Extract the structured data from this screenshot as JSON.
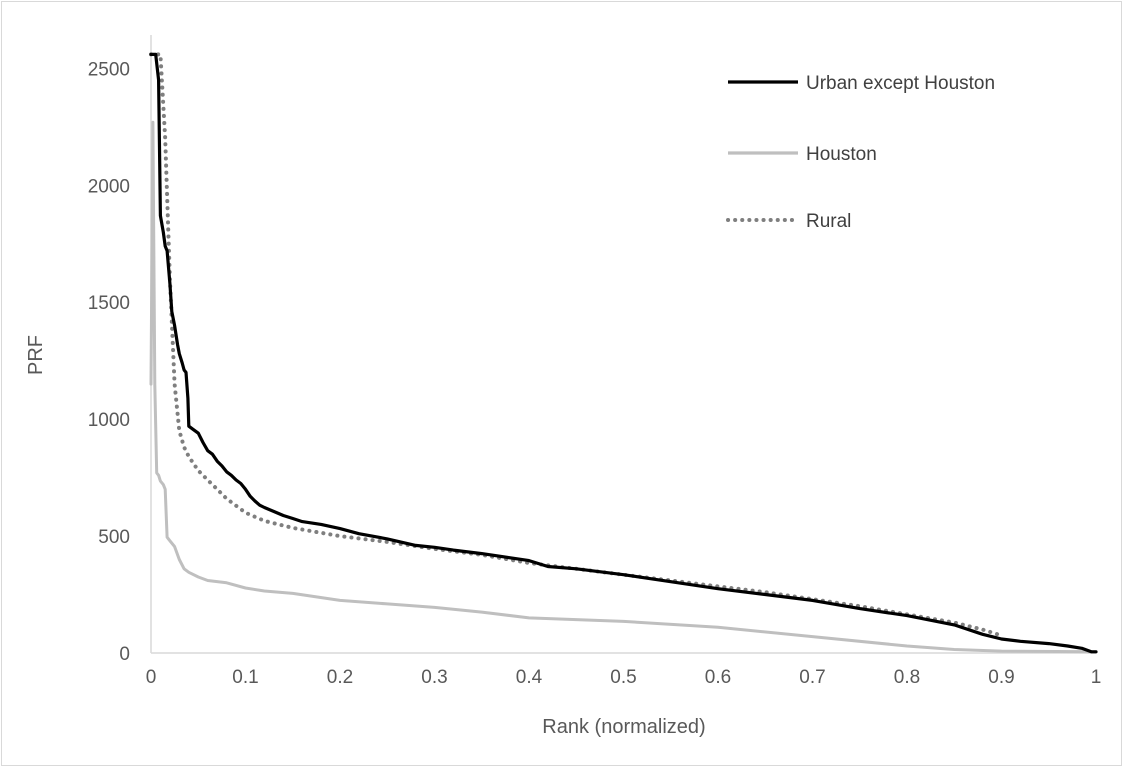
{
  "chart_data": {
    "type": "line",
    "title": "",
    "xlabel": "Rank (normalized)",
    "ylabel": "PRF",
    "xlim": [
      0,
      1
    ],
    "ylim": [
      0,
      2600
    ],
    "x_ticks": [
      "0",
      "0.1",
      "0.2",
      "0.3",
      "0.4",
      "0.5",
      "0.6",
      "0.7",
      "0.8",
      "0.9",
      "1"
    ],
    "y_ticks": [
      "0",
      "500",
      "1000",
      "1500",
      "2000",
      "2500"
    ],
    "grid": false,
    "legend_position": "top-right",
    "series": [
      {
        "name": "Urban except Houston",
        "color": "#000000",
        "style": "solid",
        "points": [
          [
            0.0,
            2560
          ],
          [
            0.005,
            2560
          ],
          [
            0.008,
            2450
          ],
          [
            0.01,
            1870
          ],
          [
            0.013,
            1800
          ],
          [
            0.015,
            1740
          ],
          [
            0.017,
            1720
          ],
          [
            0.02,
            1580
          ],
          [
            0.022,
            1460
          ],
          [
            0.025,
            1400
          ],
          [
            0.028,
            1320
          ],
          [
            0.03,
            1280
          ],
          [
            0.033,
            1240
          ],
          [
            0.035,
            1210
          ],
          [
            0.037,
            1200
          ],
          [
            0.039,
            1090
          ],
          [
            0.04,
            970
          ],
          [
            0.045,
            955
          ],
          [
            0.05,
            940
          ],
          [
            0.055,
            900
          ],
          [
            0.06,
            865
          ],
          [
            0.065,
            850
          ],
          [
            0.07,
            820
          ],
          [
            0.075,
            800
          ],
          [
            0.08,
            775
          ],
          [
            0.085,
            760
          ],
          [
            0.09,
            740
          ],
          [
            0.095,
            725
          ],
          [
            0.1,
            700
          ],
          [
            0.105,
            670
          ],
          [
            0.11,
            650
          ],
          [
            0.115,
            632
          ],
          [
            0.12,
            622
          ],
          [
            0.13,
            605
          ],
          [
            0.14,
            588
          ],
          [
            0.15,
            575
          ],
          [
            0.16,
            562
          ],
          [
            0.18,
            550
          ],
          [
            0.2,
            532
          ],
          [
            0.22,
            510
          ],
          [
            0.25,
            488
          ],
          [
            0.28,
            460
          ],
          [
            0.3,
            452
          ],
          [
            0.32,
            440
          ],
          [
            0.35,
            425
          ],
          [
            0.4,
            395
          ],
          [
            0.42,
            370
          ],
          [
            0.45,
            360
          ],
          [
            0.5,
            335
          ],
          [
            0.55,
            305
          ],
          [
            0.6,
            275
          ],
          [
            0.65,
            250
          ],
          [
            0.7,
            225
          ],
          [
            0.75,
            190
          ],
          [
            0.8,
            160
          ],
          [
            0.85,
            120
          ],
          [
            0.88,
            80
          ],
          [
            0.9,
            60
          ],
          [
            0.92,
            50
          ],
          [
            0.95,
            40
          ],
          [
            0.97,
            30
          ],
          [
            0.985,
            20
          ],
          [
            0.995,
            5
          ],
          [
            1.0,
            5
          ]
        ]
      },
      {
        "name": "Houston",
        "color": "#bfbfbf",
        "style": "solid",
        "points": [
          [
            0.0,
            1150
          ],
          [
            0.002,
            2270
          ],
          [
            0.004,
            1150
          ],
          [
            0.006,
            770
          ],
          [
            0.008,
            760
          ],
          [
            0.01,
            735
          ],
          [
            0.013,
            720
          ],
          [
            0.015,
            700
          ],
          [
            0.017,
            495
          ],
          [
            0.02,
            480
          ],
          [
            0.025,
            455
          ],
          [
            0.03,
            400
          ],
          [
            0.035,
            360
          ],
          [
            0.04,
            345
          ],
          [
            0.05,
            325
          ],
          [
            0.06,
            310
          ],
          [
            0.08,
            300
          ],
          [
            0.1,
            278
          ],
          [
            0.12,
            265
          ],
          [
            0.15,
            255
          ],
          [
            0.2,
            225
          ],
          [
            0.25,
            210
          ],
          [
            0.3,
            195
          ],
          [
            0.35,
            175
          ],
          [
            0.4,
            150
          ],
          [
            0.5,
            135
          ],
          [
            0.6,
            110
          ],
          [
            0.7,
            70
          ],
          [
            0.8,
            30
          ],
          [
            0.85,
            15
          ],
          [
            0.9,
            8
          ],
          [
            1.0,
            5
          ]
        ]
      },
      {
        "name": "Rural",
        "color": "#7f7f7f",
        "style": "dotted",
        "points": [
          [
            0.0,
            2560
          ],
          [
            0.01,
            2560
          ],
          [
            0.015,
            2200
          ],
          [
            0.02,
            1600
          ],
          [
            0.025,
            1150
          ],
          [
            0.03,
            950
          ],
          [
            0.035,
            880
          ],
          [
            0.04,
            840
          ],
          [
            0.05,
            780
          ],
          [
            0.06,
            740
          ],
          [
            0.07,
            700
          ],
          [
            0.08,
            660
          ],
          [
            0.09,
            630
          ],
          [
            0.1,
            600
          ],
          [
            0.12,
            565
          ],
          [
            0.15,
            535
          ],
          [
            0.2,
            500
          ],
          [
            0.25,
            475
          ],
          [
            0.3,
            445
          ],
          [
            0.35,
            420
          ],
          [
            0.4,
            385
          ],
          [
            0.45,
            360
          ],
          [
            0.5,
            335
          ],
          [
            0.55,
            310
          ],
          [
            0.6,
            285
          ],
          [
            0.65,
            260
          ],
          [
            0.7,
            230
          ],
          [
            0.75,
            200
          ],
          [
            0.8,
            165
          ],
          [
            0.85,
            130
          ],
          [
            0.88,
            100
          ],
          [
            0.9,
            75
          ]
        ]
      }
    ]
  }
}
